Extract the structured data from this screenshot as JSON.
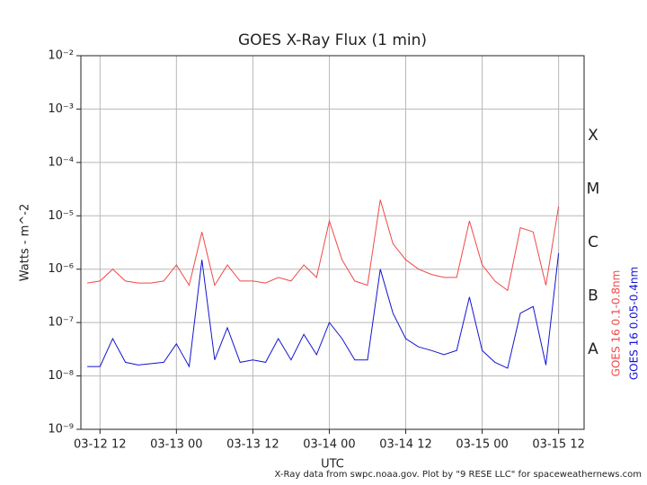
{
  "chart_data": {
    "type": "line",
    "title": "GOES X-Ray Flux (1 min)",
    "x_label": "UTC",
    "y_label": "Watts - m^-2",
    "footer": "X-Ray data from swpc.noaa.gov. Plot by \"9 RESE LLC\" for spaceweathernews.com",
    "log_scale": true,
    "grid": true,
    "flare_classes": [
      "A",
      "B",
      "C",
      "M",
      "X"
    ],
    "xlim": [
      "03-12 09",
      "03-15 16"
    ],
    "xticks": [
      "03-12 12",
      "03-13 00",
      "03-13 12",
      "03-14 00",
      "03-14 12",
      "03-15 00",
      "03-15 12"
    ],
    "ylim": [
      1e-09,
      0.01
    ],
    "yticks": [
      {
        "value": 1e-09,
        "label": "10⁻⁹"
      },
      {
        "value": 1e-08,
        "label": "10⁻⁸"
      },
      {
        "value": 1e-07,
        "label": "10⁻⁷"
      },
      {
        "value": 1e-06,
        "label": "10⁻⁶"
      },
      {
        "value": 1e-05,
        "label": "10⁻⁵"
      },
      {
        "value": 0.0001,
        "label": "10⁻⁴"
      },
      {
        "value": 0.001,
        "label": "10⁻³"
      },
      {
        "value": 0.01,
        "label": "10⁻²"
      }
    ],
    "x": [
      "03-12 10",
      "03-12 12",
      "03-12 14",
      "03-12 16",
      "03-12 18",
      "03-12 20",
      "03-12 22",
      "03-13 00",
      "03-13 02",
      "03-13 04",
      "03-13 06",
      "03-13 08",
      "03-13 10",
      "03-13 12",
      "03-13 14",
      "03-13 16",
      "03-13 18",
      "03-13 20",
      "03-13 22",
      "03-14 00",
      "03-14 02",
      "03-14 04",
      "03-14 06",
      "03-14 08",
      "03-14 10",
      "03-14 12",
      "03-14 14",
      "03-14 16",
      "03-14 18",
      "03-14 20",
      "03-14 22",
      "03-15 00",
      "03-15 02",
      "03-15 04",
      "03-15 06",
      "03-15 08",
      "03-15 10",
      "03-15 12"
    ],
    "series": [
      {
        "name": "GOES 16 0.1-0.8nm",
        "color": "#f04848",
        "values": [
          5.5e-07,
          6e-07,
          1e-06,
          6e-07,
          5.5e-07,
          5.5e-07,
          6e-07,
          1.2e-06,
          5e-07,
          5e-06,
          5e-07,
          1.2e-06,
          6e-07,
          6e-07,
          5.5e-07,
          7e-07,
          6e-07,
          1.2e-06,
          7e-07,
          8e-06,
          1.5e-06,
          6e-07,
          5e-07,
          2e-05,
          3e-06,
          1.5e-06,
          1e-06,
          8e-07,
          7e-07,
          7e-07,
          8e-06,
          1.2e-06,
          6e-07,
          4e-07,
          6e-06,
          5e-06,
          5e-07,
          1.5e-05
        ]
      },
      {
        "name": "GOES 16 0.05-0.4nm",
        "color": "#1414d0",
        "values": [
          1.5e-08,
          1.5e-08,
          5e-08,
          1.8e-08,
          1.6e-08,
          1.7e-08,
          1.8e-08,
          4e-08,
          1.5e-08,
          1.5e-06,
          2e-08,
          8e-08,
          1.8e-08,
          2e-08,
          1.8e-08,
          5e-08,
          2e-08,
          6e-08,
          2.5e-08,
          1e-07,
          5e-08,
          2e-08,
          2e-08,
          1e-06,
          1.5e-07,
          5e-08,
          3.5e-08,
          3e-08,
          2.5e-08,
          3e-08,
          3e-07,
          3e-08,
          1.8e-08,
          1.4e-08,
          1.5e-07,
          2e-07,
          1.6e-08,
          2e-06
        ]
      }
    ]
  }
}
